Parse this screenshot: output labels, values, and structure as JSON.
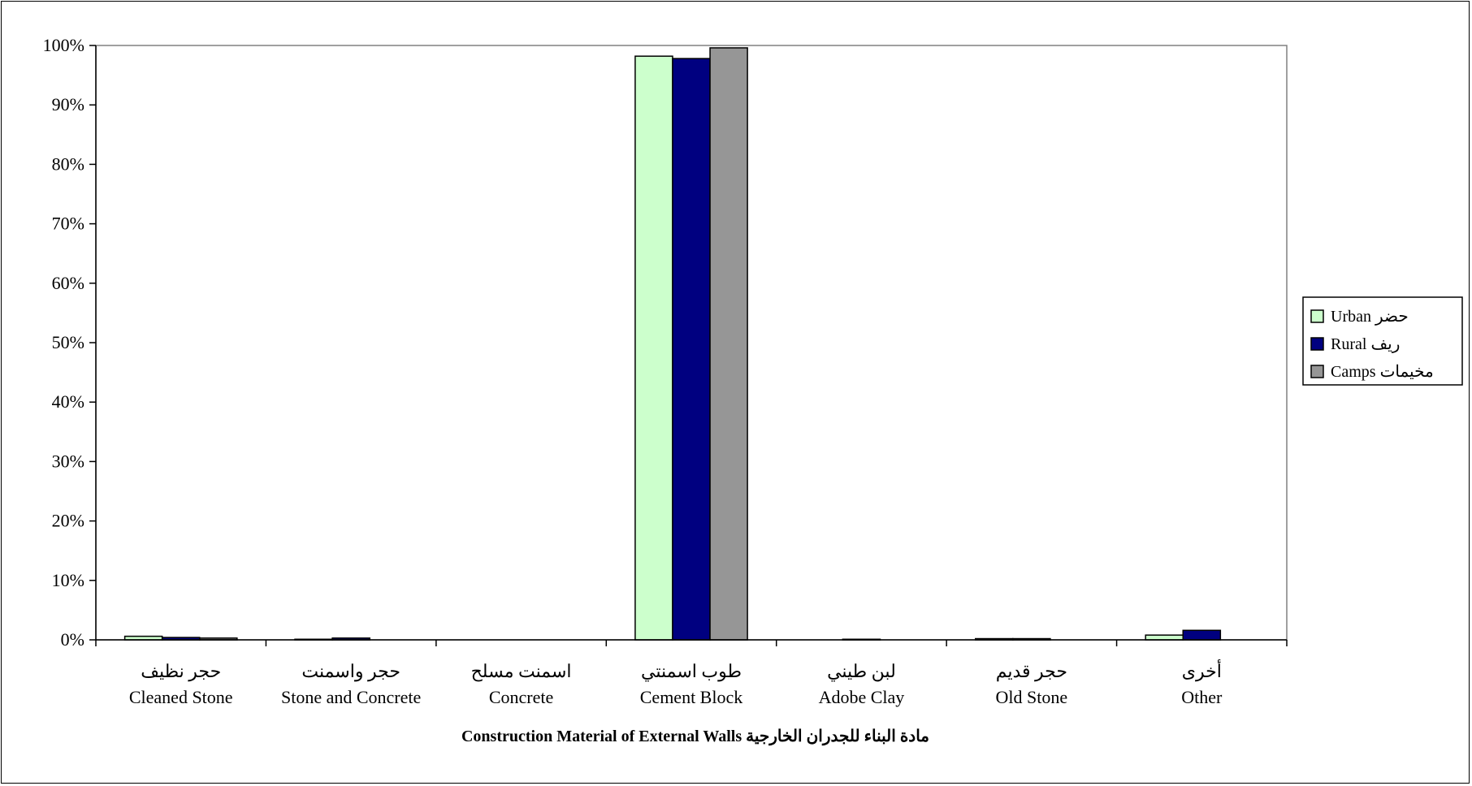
{
  "chart_data": {
    "type": "bar",
    "title": "Construction Material of External Walls مادة البناء للجدران الخارجية",
    "xlabel": "Construction Material of External Walls مادة البناء للجدران الخارجية",
    "ylabel": "",
    "ylim": [
      0,
      100
    ],
    "yticks": [
      "0%",
      "10%",
      "20%",
      "30%",
      "40%",
      "50%",
      "60%",
      "70%",
      "80%",
      "90%",
      "100%"
    ],
    "grid": false,
    "legend_position": "right",
    "categories": [
      {
        "ar": "حجر نظيف",
        "en": "Cleaned Stone"
      },
      {
        "ar": "حجر واسمنت",
        "en": "Stone and Concrete"
      },
      {
        "ar": "اسمنت مسلح",
        "en": "Concrete"
      },
      {
        "ar": "طوب اسمنتي",
        "en": "Cement Block"
      },
      {
        "ar": "لبن طيني",
        "en": "Adobe Clay"
      },
      {
        "ar": "حجر قديم",
        "en": "Old Stone"
      },
      {
        "ar": "أخرى",
        "en": "Other"
      }
    ],
    "series": [
      {
        "name": "Urban حضر",
        "color": "#ccffcc",
        "values": [
          0.6,
          0.1,
          0.0,
          98.2,
          0.0,
          0.2,
          0.8
        ]
      },
      {
        "name": "Rural ريف",
        "color": "#000080",
        "values": [
          0.4,
          0.3,
          0.0,
          97.8,
          0.1,
          0.2,
          1.6
        ]
      },
      {
        "name": "Camps مخيمات",
        "color": "#969696",
        "values": [
          0.3,
          0.0,
          0.0,
          99.6,
          0.0,
          0.0,
          0.0
        ]
      }
    ]
  }
}
